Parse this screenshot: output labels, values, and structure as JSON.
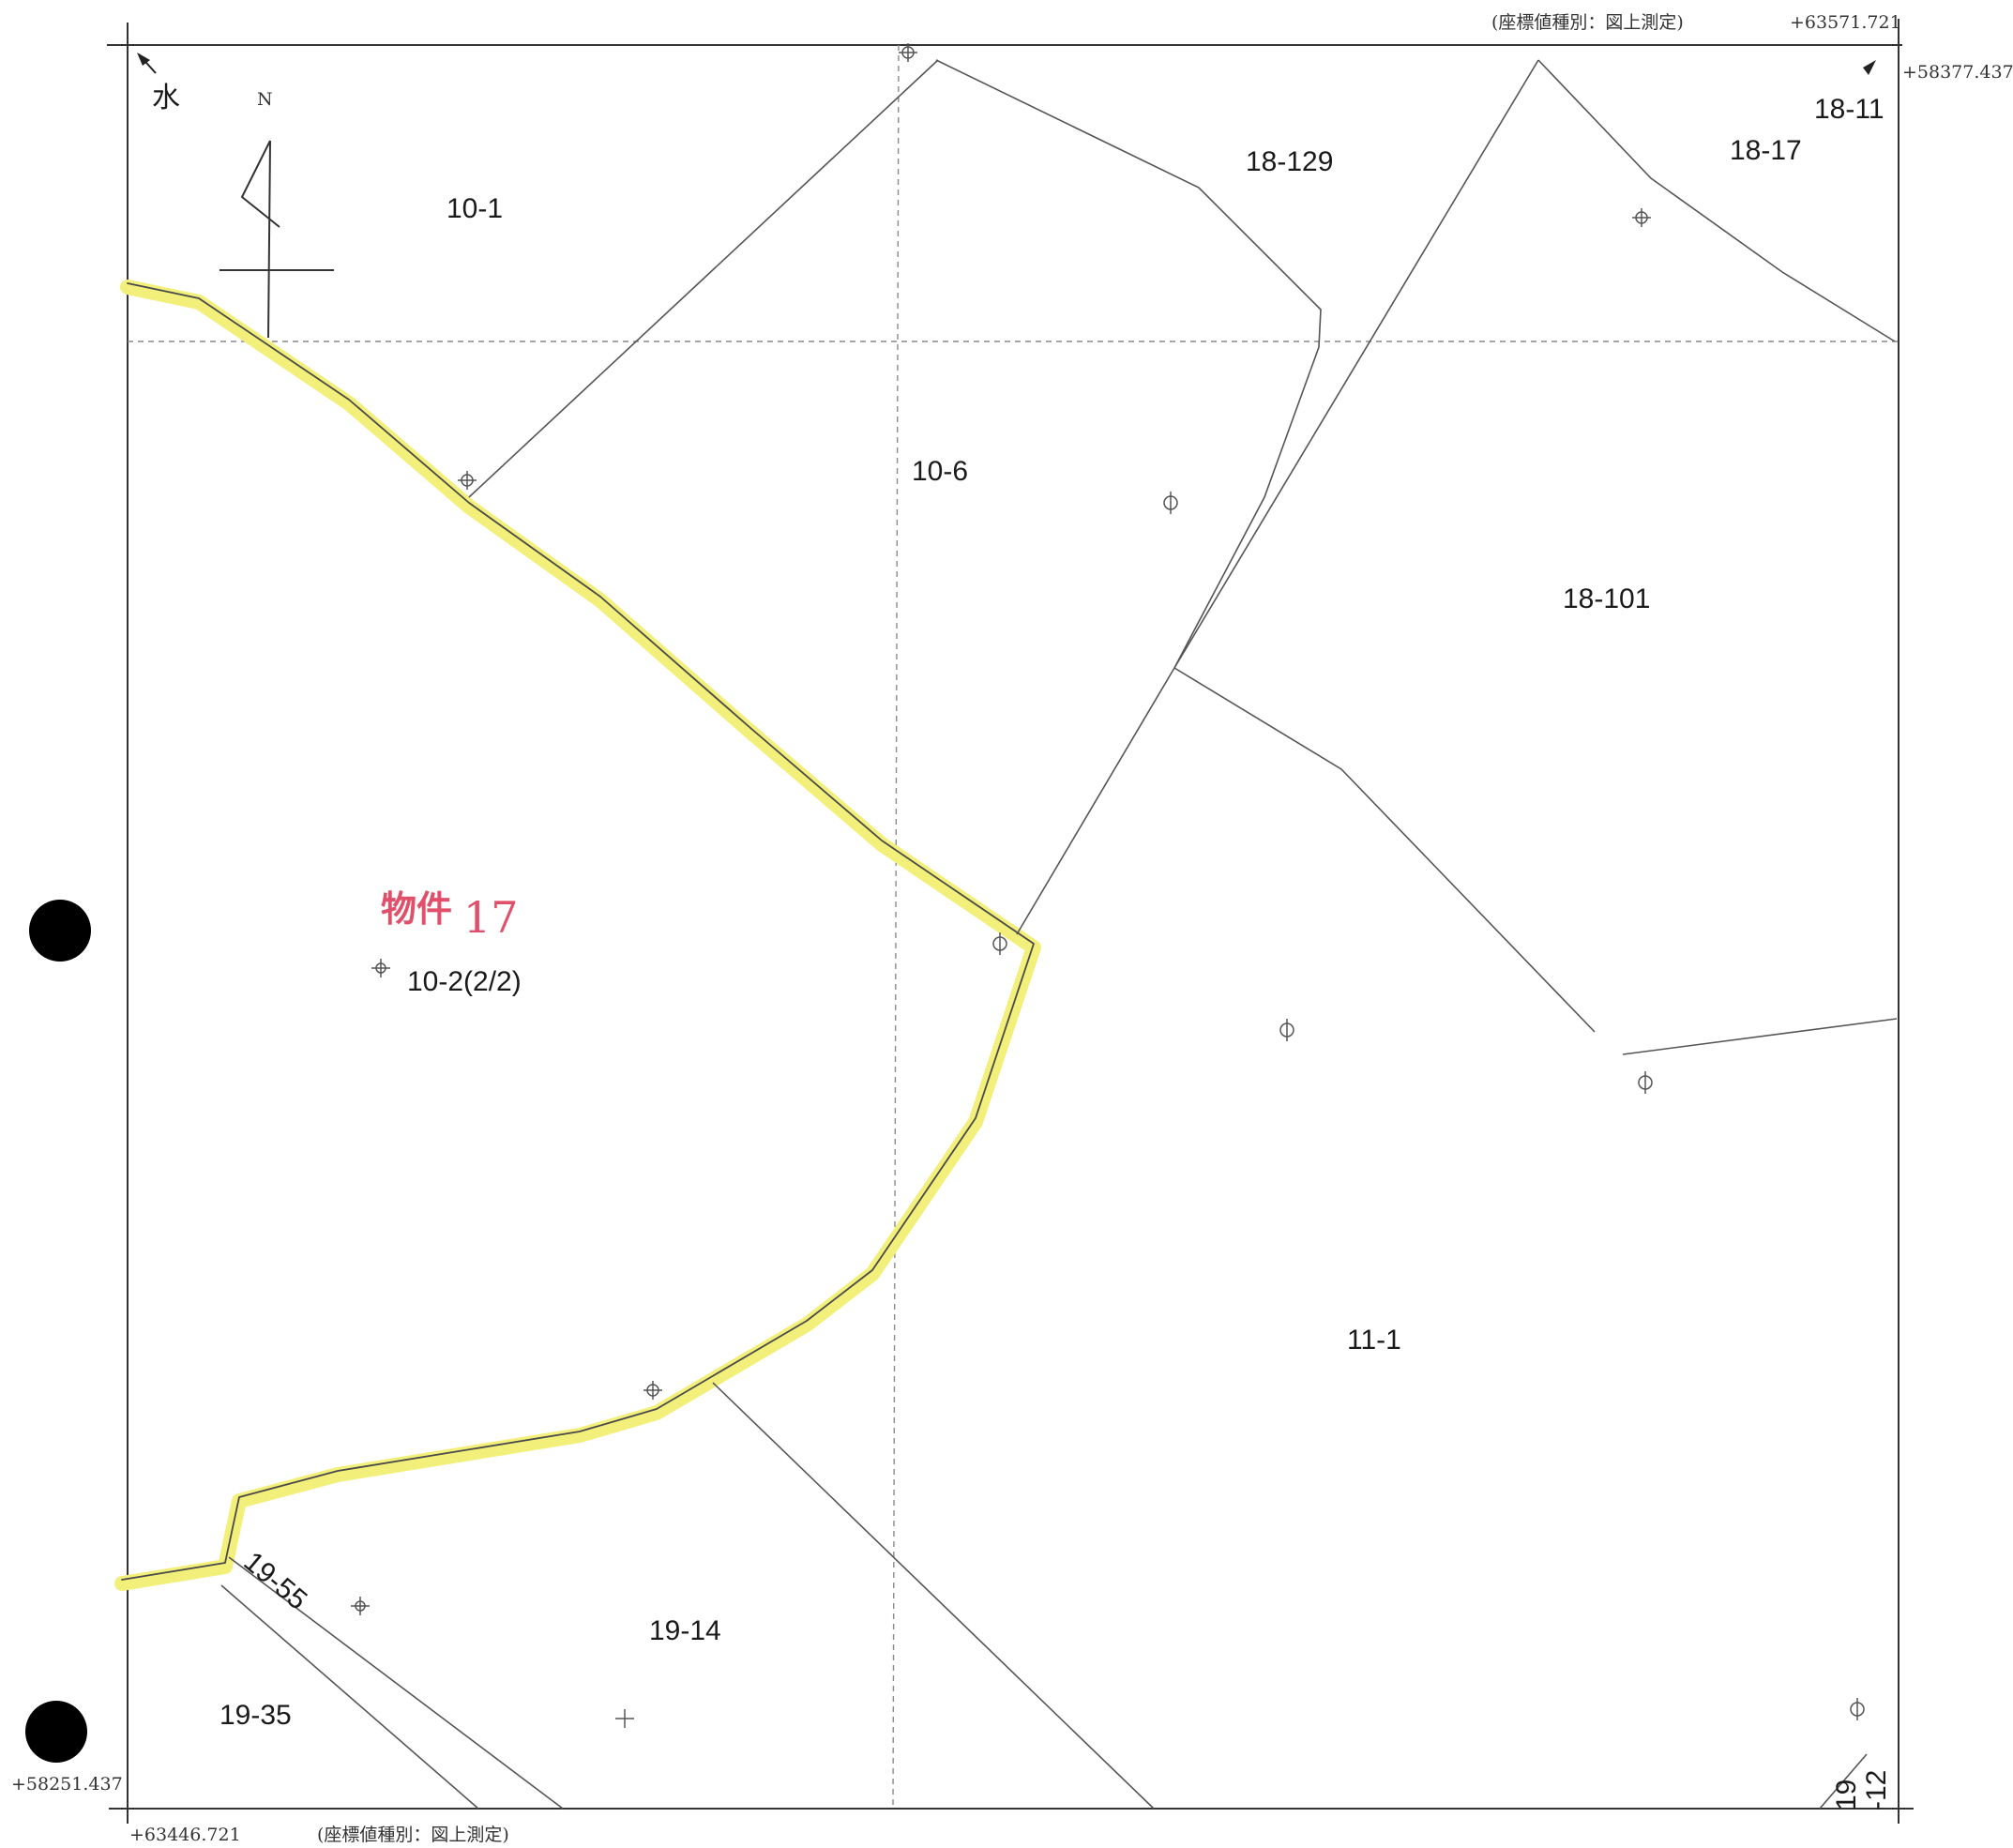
{
  "header": {
    "coord_type_top": "(座標値種別：図上測定)",
    "coord_top_right_x": "+63571.721",
    "coord_top_right_y": "+58377.437"
  },
  "footer": {
    "coord_bottom_left_y": "+58251.437",
    "coord_bottom_left_x": "+63446.721",
    "coord_type_bottom": "(座標値種別：図上測定)"
  },
  "north_arrow": {
    "label": "N"
  },
  "water_mark_char": "水",
  "property": {
    "label": "物件",
    "number": "17",
    "color": "#e0506a",
    "highlight_color": "#f2f07a"
  },
  "parcels": {
    "p10_1": "10-1",
    "p10_6": "10-6",
    "p18_129": "18-129",
    "p18_11": "18-11",
    "p18_17": "18-17",
    "p18_101": "18-101",
    "p10_2": "10-2(2/2)",
    "p11_1": "11-1",
    "p19_14": "19-14",
    "p19_35": "19-35",
    "p19_55": "19-55",
    "p19_12_top": "19",
    "p19_12_bottom": "-12"
  },
  "punch_holes": 2
}
